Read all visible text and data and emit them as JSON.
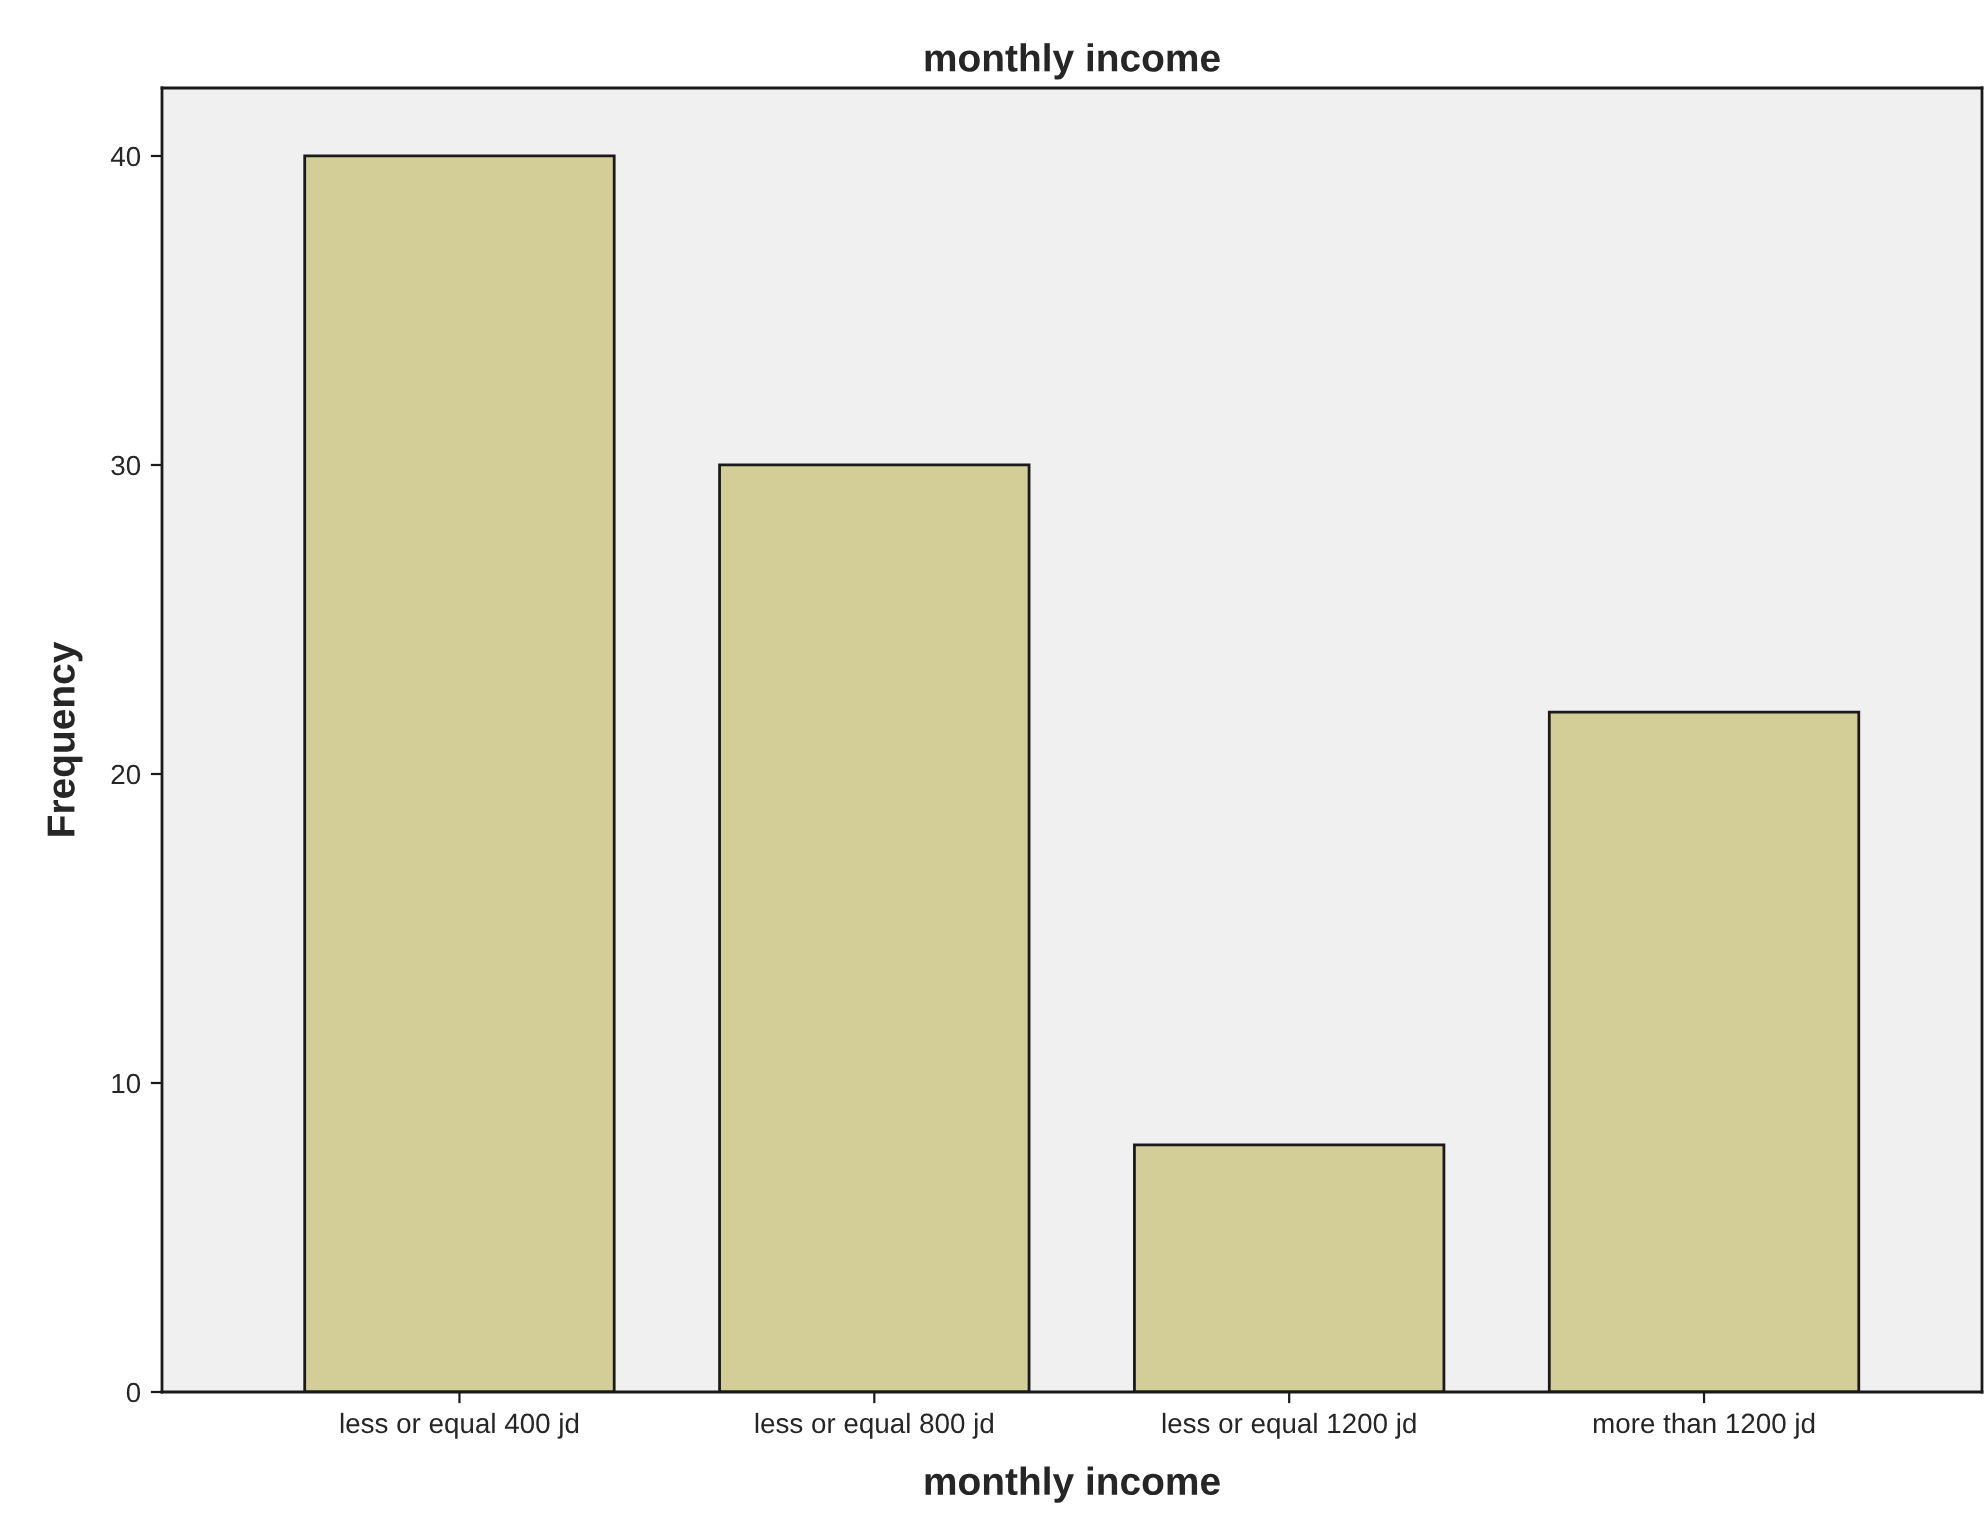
{
  "chart_data": {
    "type": "bar",
    "title": "monthly income",
    "xlabel": "monthly income",
    "ylabel": "Frequency",
    "categories": [
      "less or equal 400 jd",
      "less or equal 800 jd",
      "less or equal 1200 jd",
      "more than 1200 jd"
    ],
    "values": [
      40,
      30,
      8,
      22
    ],
    "color": "#d3ce97",
    "ylim": [
      0,
      42.2
    ],
    "yticks": [
      0,
      10,
      20,
      30,
      40
    ],
    "grid": false,
    "legend": false
  }
}
